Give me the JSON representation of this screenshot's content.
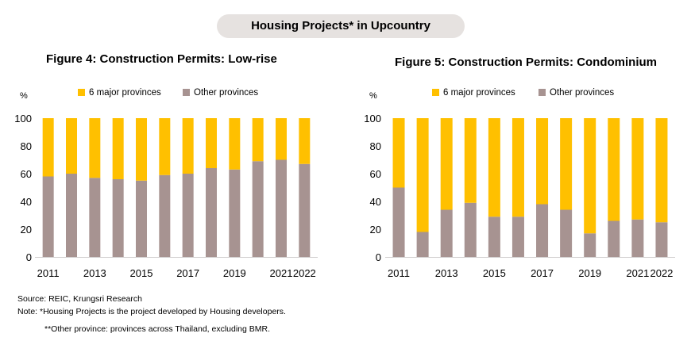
{
  "banner": {
    "title": "Housing Projects* in Upcountry"
  },
  "colors": {
    "major": "#ffc000",
    "other": "#a79391"
  },
  "chart_data": [
    {
      "type": "bar",
      "stacked": true,
      "title": "Figure 4: Construction  Permits: Low-rise",
      "ylabel": "%",
      "ylim": [
        0,
        100
      ],
      "yticks": [
        0,
        20,
        40,
        60,
        80,
        100
      ],
      "categories": [
        "2011",
        "2012",
        "2013",
        "2014",
        "2015",
        "2016",
        "2017",
        "2018",
        "2019",
        "2020",
        "2021",
        "2022"
      ],
      "xtick_labels": [
        "2011",
        "",
        "2013",
        "",
        "2015",
        "",
        "2017",
        "",
        "2019",
        "",
        "2021",
        "2022"
      ],
      "legend_position": "top",
      "series": [
        {
          "name": "6 major provinces",
          "values": [
            42,
            40,
            43,
            44,
            45,
            41,
            40,
            36,
            37,
            31,
            30,
            33
          ]
        },
        {
          "name": "Other provinces",
          "values": [
            58,
            60,
            57,
            56,
            55,
            59,
            60,
            64,
            63,
            69,
            70,
            67
          ]
        }
      ]
    },
    {
      "type": "bar",
      "stacked": true,
      "title": "Figure 5: Construction  Permits: Condominium",
      "ylabel": "%",
      "ylim": [
        0,
        100
      ],
      "yticks": [
        0,
        20,
        40,
        60,
        80,
        100
      ],
      "categories": [
        "2011",
        "2012",
        "2013",
        "2014",
        "2015",
        "2016",
        "2017",
        "2018",
        "2019",
        "2020",
        "2021",
        "2022"
      ],
      "xtick_labels": [
        "2011",
        "",
        "2013",
        "",
        "2015",
        "",
        "2017",
        "",
        "2019",
        "",
        "2021",
        "2022"
      ],
      "legend_position": "top",
      "series": [
        {
          "name": "6 major provinces",
          "values": [
            50,
            82,
            66,
            61,
            71,
            71,
            62,
            66,
            83,
            74,
            73,
            75
          ]
        },
        {
          "name": "Other provinces",
          "values": [
            50,
            18,
            34,
            39,
            29,
            29,
            38,
            34,
            17,
            26,
            27,
            25
          ]
        }
      ]
    }
  ],
  "notes": {
    "source": "Source:  REIC, Krungsri Research",
    "note1": "Note:   *Housing Projects is the project developed by Housing developers.",
    "note2": "**Other province: provinces across Thailand, excluding BMR."
  }
}
